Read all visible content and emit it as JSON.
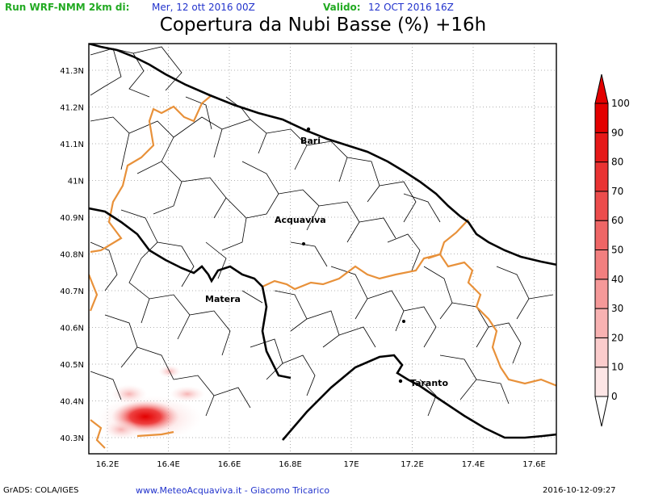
{
  "header": {
    "run_label": "Run WRF-NMM 2km di:",
    "run_date": "Mer, 12 ott 2016 00Z",
    "valid_label": "Valido:",
    "valid_date": "12 OCT 2016 16Z"
  },
  "title": "Copertura da Nubi Basse (%) +16h",
  "axes": {
    "lon_labels": [
      "16.2E",
      "16.4E",
      "16.6E",
      "16.8E",
      "17E",
      "17.2E",
      "17.4E",
      "17.6E"
    ],
    "lat_labels": [
      "40.3N",
      "40.4N",
      "40.5N",
      "40.6N",
      "40.7N",
      "40.8N",
      "40.9N",
      "41N",
      "41.1N",
      "41.2N",
      "41.3N"
    ],
    "grid": "dotted"
  },
  "cities": [
    "Bari",
    "Acquaviva",
    "Matera",
    "Taranto"
  ],
  "colorbar": {
    "ticks": [
      "0",
      "10",
      "20",
      "30",
      "40",
      "50",
      "60",
      "70",
      "80",
      "90",
      "100"
    ],
    "colors": [
      "#ffffff",
      "#fde6e6",
      "#fbcccc",
      "#f8b2b2",
      "#f59999",
      "#f27f7f",
      "#ef6666",
      "#ec4c4c",
      "#e93333",
      "#e61919",
      "#e30000"
    ]
  },
  "footer": {
    "left": "GrADS: COLA/IGES",
    "center": "www.MeteoAcquaviva.it  -  Giacomo Tricarico",
    "right": "2016-10-12-09:27"
  },
  "colors": {
    "coast": "#000000",
    "regional_border": "#e8913a",
    "municipal_border": "#000000",
    "cloud": "#e30000"
  }
}
